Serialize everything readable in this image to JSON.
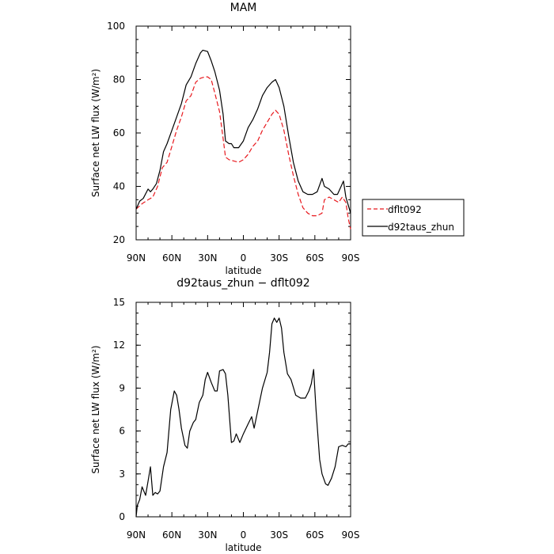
{
  "chart_data": [
    {
      "type": "line",
      "title": "MAM",
      "xlabel": "latitude",
      "ylabel": "Surface net LW flux (W/m²)",
      "xlim": [
        90,
        -90
      ],
      "ylim": [
        20,
        100
      ],
      "x_ticks": [
        90,
        60,
        30,
        0,
        -30,
        -60,
        -90
      ],
      "x_tick_labels": [
        "90N",
        "60N",
        "30N",
        "0",
        "30S",
        "60S",
        "90S"
      ],
      "y_ticks": [
        20,
        40,
        60,
        80,
        100
      ],
      "y_tick_labels": [
        "20",
        "40",
        "60",
        "80",
        "100"
      ],
      "legend_position": "right",
      "series": [
        {
          "name": "dflt092",
          "color": "#e8191e",
          "dash": "dashed",
          "points": [
            [
              90,
              31.5
            ],
            [
              85,
              33.5
            ],
            [
              80,
              35
            ],
            [
              76,
              36
            ],
            [
              72,
              40
            ],
            [
              68,
              47
            ],
            [
              64,
              49
            ],
            [
              60,
              55
            ],
            [
              56,
              61
            ],
            [
              52,
              66
            ],
            [
              48,
              72
            ],
            [
              44,
              74
            ],
            [
              40,
              79
            ],
            [
              36,
              80.5
            ],
            [
              32,
              81
            ],
            [
              30,
              81
            ],
            [
              27,
              80
            ],
            [
              24,
              75
            ],
            [
              20,
              68
            ],
            [
              17,
              58
            ],
            [
              15,
              51
            ],
            [
              12,
              50
            ],
            [
              8,
              49.5
            ],
            [
              4,
              49
            ],
            [
              0,
              50
            ],
            [
              -4,
              52
            ],
            [
              -8,
              55
            ],
            [
              -12,
              57
            ],
            [
              -16,
              61
            ],
            [
              -20,
              64
            ],
            [
              -24,
              67
            ],
            [
              -27,
              68.5
            ],
            [
              -30,
              67
            ],
            [
              -34,
              61
            ],
            [
              -38,
              52
            ],
            [
              -42,
              44
            ],
            [
              -46,
              37
            ],
            [
              -50,
              32
            ],
            [
              -54,
              30
            ],
            [
              -58,
              29
            ],
            [
              -62,
              29
            ],
            [
              -66,
              30
            ],
            [
              -68,
              35
            ],
            [
              -72,
              36
            ],
            [
              -76,
              35
            ],
            [
              -80,
              34
            ],
            [
              -83,
              36
            ],
            [
              -86,
              34
            ],
            [
              -88,
              28
            ],
            [
              -90,
              24
            ]
          ]
        },
        {
          "name": "d92taus_zhun",
          "color": "#000000",
          "dash": "solid",
          "points": [
            [
              90,
              31.5
            ],
            [
              87,
              34.5
            ],
            [
              84,
              35.5
            ],
            [
              80,
              39
            ],
            [
              78,
              38
            ],
            [
              76,
              39
            ],
            [
              73,
              41
            ],
            [
              70,
              46
            ],
            [
              67,
              53
            ],
            [
              64,
              56
            ],
            [
              60,
              61
            ],
            [
              56,
              66
            ],
            [
              52,
              71
            ],
            [
              48,
              78
            ],
            [
              44,
              81
            ],
            [
              40,
              86
            ],
            [
              36,
              90
            ],
            [
              34,
              91
            ],
            [
              30,
              90.5
            ],
            [
              27,
              87
            ],
            [
              24,
              83
            ],
            [
              20,
              76
            ],
            [
              17,
              67
            ],
            [
              15,
              57
            ],
            [
              12,
              56
            ],
            [
              10,
              56
            ],
            [
              8,
              54.5
            ],
            [
              4,
              54.5
            ],
            [
              0,
              57
            ],
            [
              -4,
              62
            ],
            [
              -8,
              65
            ],
            [
              -12,
              69
            ],
            [
              -16,
              74
            ],
            [
              -20,
              77
            ],
            [
              -24,
              79
            ],
            [
              -27,
              80
            ],
            [
              -30,
              77
            ],
            [
              -34,
              70
            ],
            [
              -38,
              59
            ],
            [
              -42,
              49
            ],
            [
              -46,
              42
            ],
            [
              -50,
              38
            ],
            [
              -54,
              37
            ],
            [
              -58,
              37
            ],
            [
              -62,
              38
            ],
            [
              -66,
              43
            ],
            [
              -68,
              40
            ],
            [
              -72,
              39
            ],
            [
              -76,
              37
            ],
            [
              -79,
              37
            ],
            [
              -82,
              40
            ],
            [
              -84,
              42
            ],
            [
              -86,
              36
            ],
            [
              -88,
              33
            ],
            [
              -90,
              30
            ]
          ]
        }
      ]
    },
    {
      "type": "line",
      "title": "d92taus_zhun − dflt092",
      "xlabel": "latitude",
      "ylabel": "Surface net LW flux (W/m²)",
      "xlim": [
        90,
        -90
      ],
      "ylim": [
        0,
        15
      ],
      "x_ticks": [
        90,
        60,
        30,
        0,
        -30,
        -60,
        -90
      ],
      "x_tick_labels": [
        "90N",
        "60N",
        "30N",
        "0",
        "30S",
        "60S",
        "90S"
      ],
      "y_ticks": [
        0,
        3,
        6,
        9,
        12,
        15
      ],
      "y_tick_labels": [
        "0",
        "3",
        "6",
        "9",
        "12",
        "15"
      ],
      "series": [
        {
          "color": "#000000",
          "dash": "solid",
          "points": [
            [
              90,
              0
            ],
            [
              89,
              0.8
            ],
            [
              87,
              1.2
            ],
            [
              85,
              2.1
            ],
            [
              83,
              1.7
            ],
            [
              82,
              1.5
            ],
            [
              80,
              2.5
            ],
            [
              78,
              3.5
            ],
            [
              76,
              1.5
            ],
            [
              74,
              1.7
            ],
            [
              72,
              1.6
            ],
            [
              70,
              1.8
            ],
            [
              67,
              3.5
            ],
            [
              64,
              4.5
            ],
            [
              61,
              7.5
            ],
            [
              58,
              8.8
            ],
            [
              56,
              8.5
            ],
            [
              54,
              7.5
            ],
            [
              52,
              6.2
            ],
            [
              49,
              5
            ],
            [
              47,
              4.8
            ],
            [
              45,
              6
            ],
            [
              42,
              6.6
            ],
            [
              40,
              6.8
            ],
            [
              37,
              8
            ],
            [
              34,
              8.5
            ],
            [
              32,
              9.6
            ],
            [
              30,
              10.1
            ],
            [
              27,
              9.4
            ],
            [
              24,
              8.8
            ],
            [
              22,
              8.8
            ],
            [
              20,
              10.2
            ],
            [
              17,
              10.3
            ],
            [
              15,
              10
            ],
            [
              13,
              8.5
            ],
            [
              10,
              5.2
            ],
            [
              8,
              5.3
            ],
            [
              6,
              5.8
            ],
            [
              3,
              5.2
            ],
            [
              0,
              5.8
            ],
            [
              -4,
              6.5
            ],
            [
              -7,
              7
            ],
            [
              -9,
              6.2
            ],
            [
              -12,
              7.4
            ],
            [
              -16,
              9
            ],
            [
              -20,
              10.1
            ],
            [
              -22,
              11.5
            ],
            [
              -24,
              13.5
            ],
            [
              -26,
              13.9
            ],
            [
              -28,
              13.6
            ],
            [
              -30,
              13.9
            ],
            [
              -32,
              13.2
            ],
            [
              -34,
              11.5
            ],
            [
              -37,
              10
            ],
            [
              -40,
              9.6
            ],
            [
              -44,
              8.5
            ],
            [
              -48,
              8.3
            ],
            [
              -52,
              8.3
            ],
            [
              -55,
              8.8
            ],
            [
              -57,
              9.3
            ],
            [
              -59,
              10.3
            ],
            [
              -61,
              7.5
            ],
            [
              -64,
              4
            ],
            [
              -66,
              3
            ],
            [
              -69,
              2.3
            ],
            [
              -71,
              2.2
            ],
            [
              -74,
              2.7
            ],
            [
              -77,
              3.5
            ],
            [
              -80,
              4.9
            ],
            [
              -83,
              5
            ],
            [
              -86,
              4.9
            ],
            [
              -88,
              5.1
            ],
            [
              -90,
              5.1
            ]
          ]
        }
      ]
    }
  ]
}
